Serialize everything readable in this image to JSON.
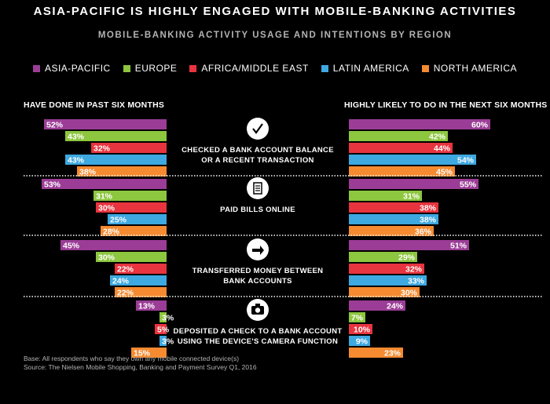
{
  "chart_data": {
    "type": "bar",
    "title": "ASIA-PACIFIC IS HIGHLY ENGAGED WITH MOBILE-BANKING ACTIVITIES",
    "subtitle": "MOBILE-BANKING ACTIVITY USAGE AND INTENTIONS BY REGION",
    "left_heading": "HAVE DONE IN PAST SIX MONTHS",
    "right_heading": "HIGHLY LIKELY TO DO IN THE NEXT SIX MONTHS",
    "legend_placement": "top",
    "regions": [
      {
        "name": "ASIA-PACIFIC",
        "color": "#9b3d96"
      },
      {
        "name": "EUROPE",
        "color": "#8dc63f"
      },
      {
        "name": "AFRICA/MIDDLE EAST",
        "color": "#e8343f"
      },
      {
        "name": "LATIN AMERICA",
        "color": "#3ea8e0"
      },
      {
        "name": "NORTH AMERICA",
        "color": "#f58a30"
      }
    ],
    "unit": "%",
    "activities": [
      {
        "line1": "CHECKED A BANK ACCOUNT BALANCE",
        "line2": "OR A RECENT TRANSACTION",
        "icon": "checkmark-icon",
        "past": [
          52,
          43,
          32,
          43,
          38
        ],
        "future": [
          60,
          42,
          44,
          54,
          45
        ]
      },
      {
        "line1": "PAID BILLS ONLINE",
        "line2": "",
        "icon": "bill-icon",
        "past": [
          53,
          31,
          30,
          25,
          28
        ],
        "future": [
          55,
          31,
          38,
          38,
          36
        ]
      },
      {
        "line1": "TRANSFERRED MONEY BETWEEN",
        "line2": "BANK ACCOUNTS",
        "icon": "transfer-icon",
        "past": [
          45,
          30,
          22,
          24,
          22
        ],
        "future": [
          51,
          29,
          32,
          33,
          30
        ]
      },
      {
        "line1": "DEPOSITED A CHECK TO A BANK ACCOUNT",
        "line2": "USING THE DEVICE'S CAMERA FUNCTION",
        "icon": "camera-icon",
        "past": [
          13,
          3,
          5,
          3,
          15
        ],
        "future": [
          24,
          7,
          10,
          9,
          23
        ]
      }
    ]
  },
  "footnote": {
    "line1": "Base: All respondents who say they own any mobile connected device(s)",
    "line2": "Source: The Nielsen Mobile Shopping, Banking and Payment Survey Q1, 2016"
  }
}
